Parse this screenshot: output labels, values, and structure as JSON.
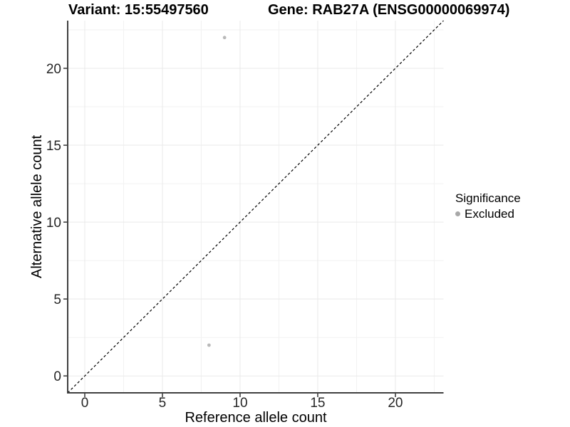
{
  "titles": {
    "left": "Variant: 15:55497560",
    "right": "Gene: RAB27A (ENSG00000069974)"
  },
  "chart_data": {
    "type": "scatter",
    "title_left": "Variant: 15:55497560",
    "title_right": "Gene: RAB27A (ENSG00000069974)",
    "xlabel": "Reference allele count",
    "ylabel": "Alternative allele count",
    "xlim": [
      -1.1,
      23.1
    ],
    "ylim": [
      -1.1,
      23.1
    ],
    "x_ticks": [
      0,
      5,
      10,
      15,
      20
    ],
    "y_ticks": [
      0,
      5,
      10,
      15,
      20
    ],
    "minor_ticks": [
      2.5,
      7.5,
      12.5,
      17.5,
      22.5
    ],
    "grid": true,
    "identity_line": {
      "style": "dashed",
      "from": [
        -1.1,
        -1.1
      ],
      "to": [
        23.1,
        23.1
      ]
    },
    "series": [
      {
        "name": "Excluded",
        "marker": "circle",
        "points": [
          {
            "x": 9,
            "y": 22
          },
          {
            "x": 8,
            "y": 2
          }
        ]
      }
    ]
  },
  "legend": {
    "title": "Significance",
    "position": "right",
    "items": [
      {
        "label": "Excluded",
        "marker": "circle",
        "color": "#a8a8a8"
      }
    ]
  },
  "colors": {
    "background": "#ffffff",
    "point": "#b9b9b9",
    "grid_major": "#e9e9e9",
    "grid_minor": "#f2f2f2",
    "axis_line": "#404040",
    "tick_mark": "#404040",
    "tick_label": "#262626",
    "dashed_line": "#000000"
  }
}
